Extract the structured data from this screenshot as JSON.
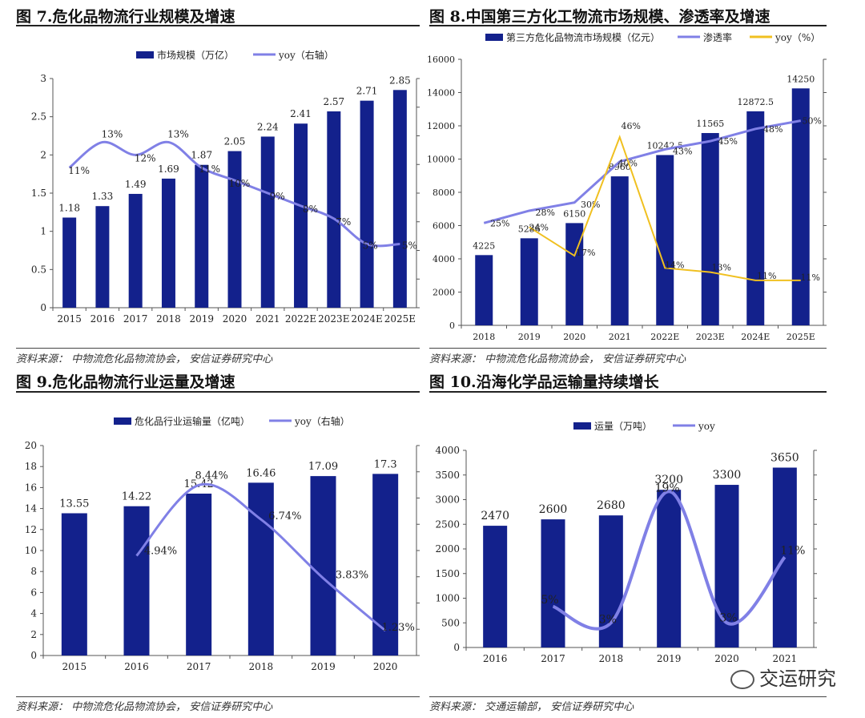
{
  "watermark": "交运研究",
  "colors": {
    "bar": "#13218c",
    "line": "#8080e6",
    "line2": "#f0c020"
  },
  "panels": [
    {
      "title": "图 7.危化品物流行业规模及增速",
      "source": "资料来源：  中物流危化品物流协会，  安信证券研究中心",
      "chart_data": {
        "type": "bar",
        "categories": [
          "2015",
          "2016",
          "2017",
          "2018",
          "2019",
          "2020",
          "2021",
          "2022E",
          "2023E",
          "2024E",
          "2025E"
        ],
        "series": [
          {
            "name": "市场规模（万亿）",
            "type": "bar",
            "values": [
              1.18,
              1.33,
              1.49,
              1.69,
              1.87,
              2.05,
              2.24,
              2.41,
              2.57,
              2.71,
              2.85
            ],
            "labels": [
              "1.18",
              "1.33",
              "1.49",
              "1.69",
              "1.87",
              "2.05",
              "2.24",
              "2.41",
              "2.57",
              "2.71",
              "2.85"
            ]
          },
          {
            "name": "yoy（右轴）",
            "type": "line",
            "axis": "right",
            "values": [
              11,
              13,
              12,
              13,
              11,
              10,
              9,
              8,
              7,
              5,
              5
            ],
            "labels": [
              "11%",
              "13%",
              "12%",
              "13%",
              "11%",
              "10%",
              "9%",
              "8%",
              "7%",
              "5%",
              "5%"
            ]
          }
        ],
        "ylim": [
          0,
          3
        ],
        "yticks": [
          "0",
          "0.5",
          "1",
          "1.5",
          "2",
          "2.5",
          "3"
        ],
        "y2lim": [
          0,
          18
        ],
        "legend": "top-center"
      }
    },
    {
      "title": "图 8.中国第三方化工物流市场规模、渗透率及增速",
      "source": "资料来源：  中物流危化品物流协会，  安信证券研究中心",
      "chart_data": {
        "type": "bar",
        "categories": [
          "2018",
          "2019",
          "2020",
          "2021",
          "2022E",
          "2023E",
          "2024E",
          "2025E"
        ],
        "series": [
          {
            "name": "第三方危化品物流市场规模（亿元）",
            "type": "bar",
            "values": [
              4225,
              5236,
              6150,
              8960,
              10242.5,
              11565,
              12872.5,
              14250
            ],
            "labels": [
              "4225",
              "5236",
              "6150",
              "8960",
              "10242.5",
              "11565",
              "12872.5",
              "14250"
            ]
          },
          {
            "name": "渗透率",
            "type": "line",
            "axis": "right",
            "values": [
              25,
              28,
              30,
              40,
              43,
              45,
              48,
              50
            ],
            "labels": [
              "25%",
              "28%",
              "30%",
              "40%",
              "43%",
              "45%",
              "48%",
              "50%"
            ]
          },
          {
            "name": "yoy（%）",
            "type": "line",
            "axis": "right",
            "values": [
              null,
              24,
              17,
              46,
              14,
              13,
              11,
              11
            ],
            "labels": [
              "",
              "24%",
              "17%",
              "46%",
              "14%",
              "13%",
              "11%",
              "11%"
            ]
          }
        ],
        "ylim": [
          0,
          16000
        ],
        "yticks": [
          "0",
          "2000",
          "4000",
          "6000",
          "8000",
          "10000",
          "12000",
          "14000",
          "16000"
        ],
        "y2lim": [
          0,
          65
        ],
        "legend": "top"
      }
    },
    {
      "title": "图 9.危化品物流行业运量及增速",
      "source": "资料来源：  中物流危化品物流协会，  安信证券研究中心",
      "chart_data": {
        "type": "bar",
        "categories": [
          "2015",
          "2016",
          "2017",
          "2018",
          "2019",
          "2020"
        ],
        "series": [
          {
            "name": "危化品行业运输量（亿吨）",
            "type": "bar",
            "values": [
              13.55,
              14.22,
              15.42,
              16.46,
              17.09,
              17.3
            ],
            "labels": [
              "13.55",
              "14.22",
              "15.42",
              "16.46",
              "17.09",
              "17.3"
            ]
          },
          {
            "name": "yoy（右轴）",
            "type": "line",
            "axis": "right",
            "values": [
              null,
              4.94,
              8.44,
              6.74,
              3.83,
              1.23
            ],
            "labels": [
              "",
              "4.94%",
              "8.44%",
              "6.74%",
              "3.83%",
              "1.23%"
            ]
          }
        ],
        "ylim": [
          0,
          20
        ],
        "yticks": [
          "0",
          "2",
          "4",
          "6",
          "8",
          "10",
          "12",
          "14",
          "16",
          "18",
          "20"
        ],
        "y2lim": [
          0,
          10.4
        ],
        "legend": "top-center"
      }
    },
    {
      "title": "图 10.沿海化学品运输量持续增长",
      "source": "资料来源：  交通运输部，  安信证券研究中心",
      "chart_data": {
        "type": "bar",
        "categories": [
          "2016",
          "2017",
          "2018",
          "2019",
          "2020",
          "2021"
        ],
        "series": [
          {
            "name": "运量（万吨）",
            "type": "bar",
            "values": [
              2470,
              2600,
              2680,
              3200,
              3300,
              3650
            ],
            "labels": [
              "2470",
              "2600",
              "2680",
              "3200",
              "3300",
              "3650"
            ]
          },
          {
            "name": "yoy",
            "type": "line",
            "axis": "right",
            "values": [
              null,
              5,
              3,
              19,
              3,
              11
            ],
            "labels": [
              "",
              "5%",
              "3%",
              "19%",
              "3%",
              "11%"
            ]
          }
        ],
        "ylim": [
          0,
          4000
        ],
        "yticks": [
          "0",
          "500",
          "1000",
          "1500",
          "2000",
          "2500",
          "3000",
          "3500",
          "4000"
        ],
        "y2lim": [
          0,
          24
        ],
        "legend": "top-center"
      }
    }
  ]
}
